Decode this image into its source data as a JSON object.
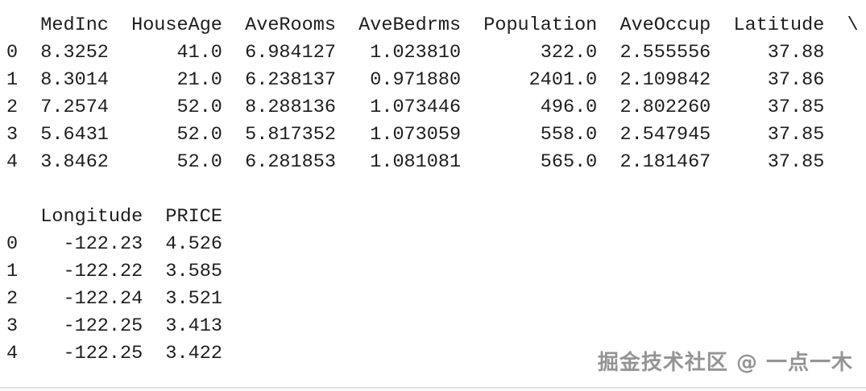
{
  "console": {
    "background": "#ffffff",
    "text_color": "#1d1d1d",
    "blocks": [
      {
        "name": "dataframe-head-block-1",
        "index_header": "",
        "continuation": "\\",
        "headers": [
          "MedInc",
          "HouseAge",
          "AveRooms",
          "AveBedrms",
          "Population",
          "AveOccup",
          "Latitude"
        ],
        "rows": [
          {
            "index": "0",
            "cells": [
              "8.3252",
              "41.0",
              "6.984127",
              "1.023810",
              "322.0",
              "2.555556",
              "37.88"
            ]
          },
          {
            "index": "1",
            "cells": [
              "8.3014",
              "21.0",
              "6.238137",
              "0.971880",
              "2401.0",
              "2.109842",
              "37.86"
            ]
          },
          {
            "index": "2",
            "cells": [
              "7.2574",
              "52.0",
              "8.288136",
              "1.073446",
              "496.0",
              "2.802260",
              "37.85"
            ]
          },
          {
            "index": "3",
            "cells": [
              "5.6431",
              "52.0",
              "5.817352",
              "1.073059",
              "558.0",
              "2.547945",
              "37.85"
            ]
          },
          {
            "index": "4",
            "cells": [
              "3.8462",
              "52.0",
              "6.281853",
              "1.081081",
              "565.0",
              "2.181467",
              "37.85"
            ]
          }
        ]
      },
      {
        "name": "dataframe-head-block-2",
        "index_header": "",
        "continuation": "",
        "headers": [
          "Longitude",
          "PRICE"
        ],
        "rows": [
          {
            "index": "0",
            "cells": [
              "-122.23",
              "4.526"
            ]
          },
          {
            "index": "1",
            "cells": [
              "-122.22",
              "3.585"
            ]
          },
          {
            "index": "2",
            "cells": [
              "-122.24",
              "3.521"
            ]
          },
          {
            "index": "3",
            "cells": [
              "-122.25",
              "3.413"
            ]
          },
          {
            "index": "4",
            "cells": [
              "-122.25",
              "3.422"
            ]
          }
        ]
      }
    ]
  },
  "watermark": {
    "text": "掘金技术社区 @ 一点一木",
    "color": "#949494"
  }
}
